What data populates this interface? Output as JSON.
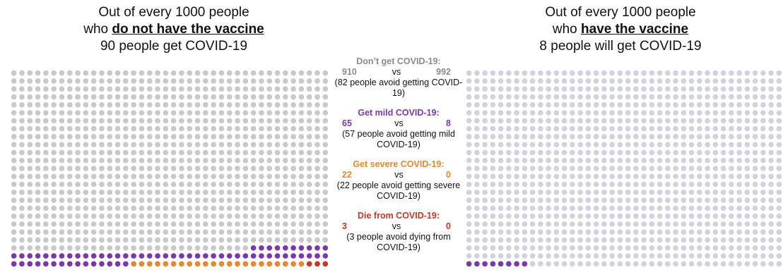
{
  "left_panel": {
    "title_line1": "Out of every 1000 people",
    "title_line2_prefix": "who ",
    "title_line2_em": "do not have the vaccine",
    "title_line3": "90 people get COVID-19"
  },
  "right_panel": {
    "title_line1": "Out of every 1000 people",
    "title_line2_prefix": "who ",
    "title_line2_em": "have the vaccine",
    "title_line3": "8 people will get COVID-19"
  },
  "comparison": [
    {
      "heading": "Don’t get COVID-19:",
      "left": "910",
      "vs": "vs",
      "right": "992",
      "note": "(82 people avoid getting COVID-19)",
      "color": "#8c8c8c"
    },
    {
      "heading": "Get mild COVID-19:",
      "left": "65",
      "vs": "vs",
      "right": "8",
      "note": "(57 people avoid getting mild COVID-19)",
      "color": "#7a3aa6"
    },
    {
      "heading": "Get severe COVID-19:",
      "left": "22",
      "vs": "vs",
      "right": "0",
      "note": "(22 people avoid getting severe COVID-19)",
      "color": "#e3892f"
    },
    {
      "heading": "Die from COVID-19:",
      "left": "3",
      "vs": "vs",
      "right": "0",
      "note": "(3 people avoid dying from COVID-19)",
      "color": "#c0392b"
    }
  ],
  "chart_data": [
    {
      "type": "waffle",
      "total": 1000,
      "categories": [
        "Don’t get COVID-19",
        "Get mild COVID-19",
        "Get severe COVID-19",
        "Die from COVID-19"
      ],
      "values": [
        910,
        65,
        22,
        3
      ],
      "colors": [
        "#c9c9c9",
        "#7a3aa6",
        "#e3892f",
        "#c0392b"
      ]
    },
    {
      "type": "waffle",
      "total": 1000,
      "categories": [
        "Don’t get COVID-19",
        "Get mild COVID-19",
        "Get severe COVID-19",
        "Die from COVID-19"
      ],
      "values": [
        992,
        8,
        0,
        0
      ],
      "colors": [
        "#d2d2de",
        "#7a3aa6",
        "#e3892f",
        "#c0392b"
      ]
    }
  ]
}
